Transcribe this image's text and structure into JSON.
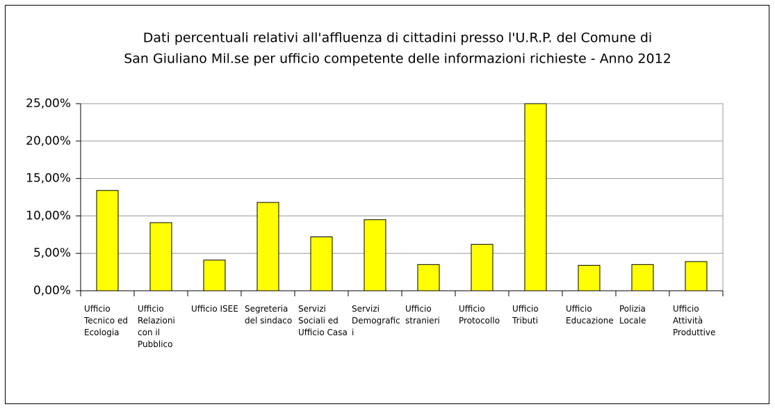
{
  "chart_data": {
    "type": "bar",
    "title": [
      "Dati percentuali relativi all'affluenza di cittadini presso l'U.R.P. del Comune di",
      "San Giuliano Mil.se per ufficio competente delle informazioni richieste - Anno 2012"
    ],
    "categories": [
      "Ufficio Tecnico ed Ecologia",
      "Ufficio Relazioni con il Pubblico",
      "Ufficio ISEE",
      "Segreteria del sindaco",
      "Servizi Sociali ed Ufficio Casa",
      "Servizi Demografici",
      "Ufficio stranieri",
      "Ufficio Protocollo",
      "Ufficio Tributi",
      "Ufficio Educazione",
      "Polizia Locale",
      "Ufficio Attività Produttive"
    ],
    "values": [
      13.4,
      9.1,
      4.1,
      11.8,
      7.2,
      9.5,
      3.5,
      6.2,
      25.0,
      3.4,
      3.5,
      3.9
    ],
    "color": "#ffff00",
    "ylim": [
      0,
      25
    ],
    "yticks": [
      {
        "value": 0,
        "label": "0,00%"
      },
      {
        "value": 5,
        "label": "5,00%"
      },
      {
        "value": 10,
        "label": "10,00%"
      },
      {
        "value": 15,
        "label": "15,00%"
      },
      {
        "value": 20,
        "label": "20,00%"
      },
      {
        "value": 25,
        "label": "25,00%"
      }
    ],
    "grid": true
  }
}
